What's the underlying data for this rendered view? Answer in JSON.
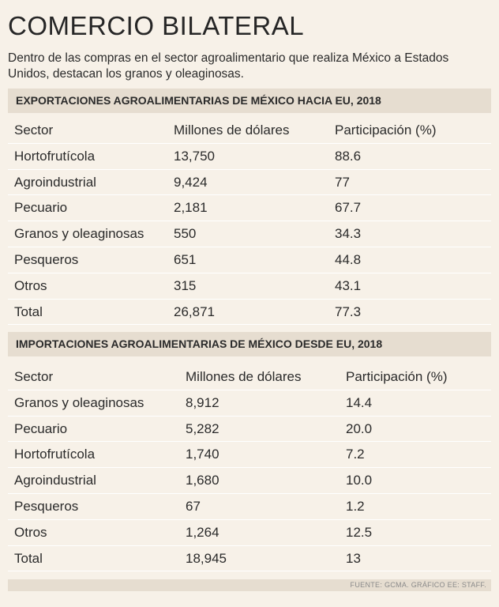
{
  "title": "COMERCIO BILATERAL",
  "subtitle": "Dentro de las compras en el sector agroalimentario que realiza México a Estados Unidos, destacan los granos y oleaginosas.",
  "exports": {
    "heading": "EXPORTACIONES AGROALIMENTARIAS DE MÉXICO HACIA EU, 2018",
    "columns": [
      "Sector",
      "Millones de dólares",
      "Participación (%)"
    ],
    "rows": [
      [
        "Hortofrutícola",
        "13,750",
        "88.6"
      ],
      [
        "Agroindustrial",
        "9,424",
        "77"
      ],
      [
        "Pecuario",
        "2,181",
        "67.7"
      ],
      [
        "Granos y oleaginosas",
        "550",
        "34.3"
      ],
      [
        "Pesqueros",
        "651",
        "44.8"
      ],
      [
        "Otros",
        "315",
        "43.1"
      ],
      [
        "Total",
        "26,871",
        "77.3"
      ]
    ]
  },
  "imports": {
    "heading": "IMPORTACIONES AGROALIMENTARIAS DE MÉXICO DESDE EU, 2018",
    "columns": [
      "Sector",
      "Millones de dólares",
      "Participación (%)"
    ],
    "rows": [
      [
        "Granos y oleaginosas",
        "8,912",
        "14.4"
      ],
      [
        "Pecuario",
        "5,282",
        "20.0"
      ],
      [
        "Hortofrutícola",
        "1,740",
        "7.2"
      ],
      [
        "Agroindustrial",
        "1,680",
        "10.0"
      ],
      [
        "Pesqueros",
        "67",
        "1.2"
      ],
      [
        "Otros",
        "1,264",
        "12.5"
      ],
      [
        "Total",
        "18,945",
        "13"
      ]
    ]
  },
  "source": "FUENTE: GCMA. GRÁFICO EE: STAFF."
}
